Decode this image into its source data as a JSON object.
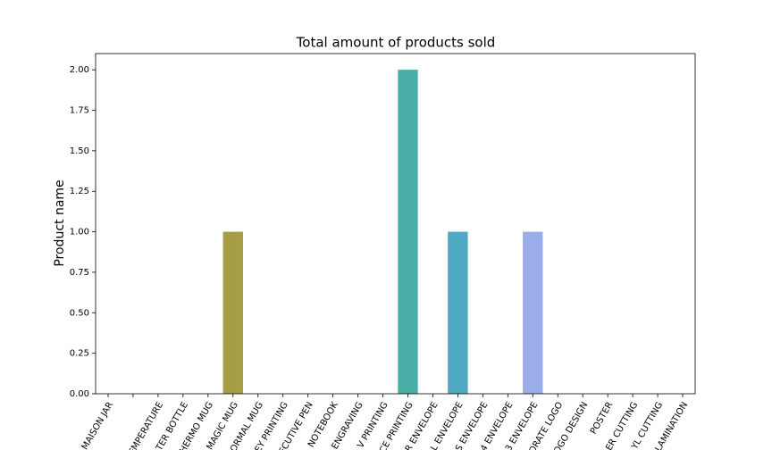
{
  "chart_data": {
    "type": "bar",
    "title": "Total amount of products sold",
    "y_label": "Product name",
    "categories": [
      "MAISON JAR",
      null,
      "EMPERATURE",
      "TER BOTTLE",
      "HERMO MUG",
      "MAGIC MUG",
      "ORMAL MUG",
      "EY PRINTING",
      "ECUTIVE PEN",
      "NOTEBOOK",
      "ENGRAVING",
      "V PRINTING",
      "CE PRINTING",
      "R ENVELOPE",
      "L ENVELOPE",
      "S ENVELOPE",
      "4 ENVELOPE",
      "3 ENVELOPE",
      "ORATE LOGO",
      "OGO DESIGN",
      "POSTER",
      "ER CUTTING",
      "YL CUTTING",
      "LAMINATION"
    ],
    "values": [
      0,
      0,
      0,
      0,
      0,
      1,
      0,
      0,
      0,
      0,
      0,
      0,
      2,
      0,
      1,
      0,
      0,
      1,
      0,
      0,
      0,
      0,
      0,
      0
    ],
    "colors": [
      "#f77189",
      "#f7754f",
      "#dc8932",
      "#c39532",
      "#ae9d31",
      "#a69d45",
      "#77ab31",
      "#4fb031",
      "#33b07a",
      "#35ad9c",
      "#36ada4",
      "#38aaac",
      "#4aaea6",
      "#3ba3ec",
      "#50a9c2",
      "#6e9bf4",
      "#8f92f4",
      "#9aacea",
      "#cc7af4",
      "#e866f4",
      "#f45cdd",
      "#f565cc",
      "#f66bb3",
      "#f76e9d"
    ],
    "ylim": [
      0,
      2.1
    ],
    "yticks": [
      {
        "value": 0,
        "label": "0.00"
      },
      {
        "value": 0.25,
        "label": "0.25"
      },
      {
        "value": 0.5,
        "label": "0.50"
      },
      {
        "value": 0.75,
        "label": "0.75"
      },
      {
        "value": 1,
        "label": "1.00"
      },
      {
        "value": 1.25,
        "label": "1.25"
      },
      {
        "value": 1.5,
        "label": "1.50"
      },
      {
        "value": 1.75,
        "label": "1.75"
      },
      {
        "value": 2,
        "label": "2.00"
      }
    ]
  }
}
